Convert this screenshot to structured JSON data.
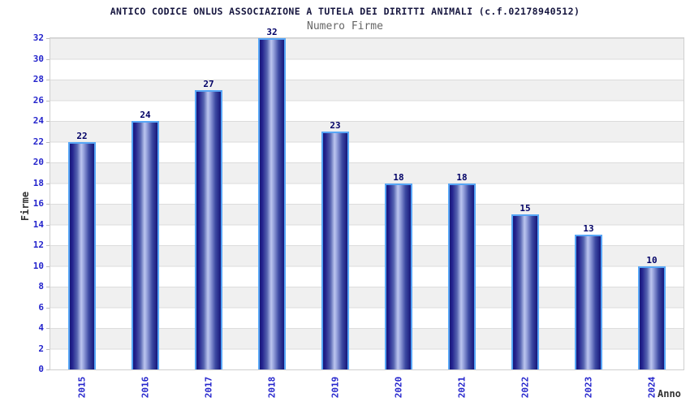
{
  "header": {
    "title": "ANTICO CODICE ONLUS ASSOCIAZIONE A TUTELA DEI DIRITTI ANIMALI (c.f.02178940512)",
    "subtitle": "Numero Firme"
  },
  "chart_data": {
    "type": "bar",
    "title": "ANTICO CODICE ONLUS ASSOCIAZIONE A TUTELA DEI DIRITTI ANIMALI (c.f.02178940512)",
    "subtitle": "Numero Firme",
    "categories": [
      "2015",
      "2016",
      "2017",
      "2018",
      "2019",
      "2020",
      "2021",
      "2022",
      "2023",
      "2024"
    ],
    "values": [
      22,
      24,
      27,
      32,
      23,
      18,
      18,
      15,
      13,
      10
    ],
    "xlabel": "Anno",
    "ylabel": "Firme",
    "ylim": [
      0,
      32
    ],
    "ytick_step": 2,
    "grid": "horizontal gridlines every 2 units with alternating white/gray bands",
    "legend": "none",
    "bar_style": "vertical cylinder gradient with light blue outline, value labels above bars",
    "colors": {
      "bar_edge": "#17177a",
      "bar_mid": "#3c49a2",
      "bar_highlight": "#bcc6ef",
      "bar_border": "#57a6f6",
      "value_label": "#000066",
      "tick_label": "#2424cc",
      "axis_title": "#333333",
      "band_gray": "#f0f0f0",
      "plot_border": "#cfcfcf",
      "title": "#16163f",
      "subtitle": "#666666"
    }
  }
}
